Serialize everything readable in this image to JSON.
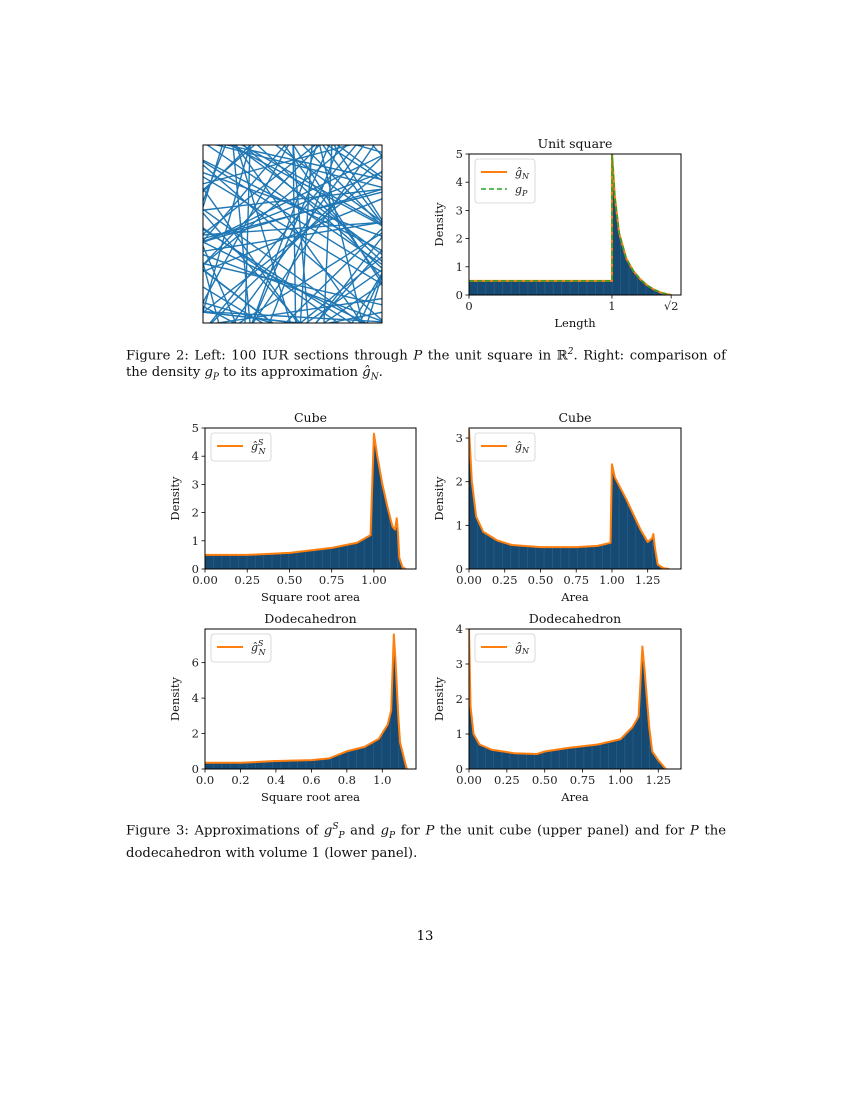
{
  "colors": {
    "fill": "#174a72",
    "bar_stripe": "#2d6a9a",
    "estimate": "#ff7f0e",
    "exact": "#2ca02c",
    "lines": "#1f77b4"
  },
  "figure2": {
    "left_panel": {
      "type": "line-sections",
      "count": 100
    },
    "caption": [
      {
        "t": "Figure 2: Left: 100 IUR sections through "
      },
      {
        "t": "P",
        "m": 1
      },
      {
        "t": " the unit square in ℝ"
      },
      {
        "t": "2",
        "sup": 1
      },
      {
        "t": ". Right: comparison of the density "
      },
      {
        "t": "g",
        "m": 1
      },
      {
        "t": "P",
        "sub": 1
      },
      {
        "t": " to its approximation "
      },
      {
        "t": "ĝ",
        "m": 1
      },
      {
        "t": "N",
        "sub": 1
      },
      {
        "t": "."
      }
    ]
  },
  "figure3": {
    "caption": [
      {
        "t": "Figure 3: Approximations of "
      },
      {
        "t": "g",
        "m": 1
      },
      {
        "t": "S",
        "sup": 1
      },
      {
        "t": "P",
        "sub": 1
      },
      {
        "t": " and "
      },
      {
        "t": "g",
        "m": 1
      },
      {
        "t": "P",
        "sub": 1
      },
      {
        "t": " for "
      },
      {
        "t": "P",
        "m": 1
      },
      {
        "t": " the unit cube (upper panel) and for "
      },
      {
        "t": "P",
        "m": 1
      },
      {
        "t": " the dodecahedron with volume 1 (lower panel)."
      }
    ]
  },
  "page_number": "13",
  "chart_data": [
    {
      "id": "unit-square",
      "type": "area",
      "title": "Unit square",
      "xlabel": "Length",
      "ylabel": "Density",
      "xlim": [
        0,
        1.483
      ],
      "ylim": [
        0,
        5
      ],
      "xticks": [
        {
          "v": 0,
          "l": "0"
        },
        {
          "v": 1,
          "l": "1"
        },
        {
          "v": 1.4142,
          "l": "√2"
        }
      ],
      "yticks": [
        {
          "v": 0,
          "l": "0"
        },
        {
          "v": 1,
          "l": "1"
        },
        {
          "v": 2,
          "l": "2"
        },
        {
          "v": 3,
          "l": "3"
        },
        {
          "v": 4,
          "l": "4"
        },
        {
          "v": 5,
          "l": "5"
        }
      ],
      "legend": "top-left",
      "series": [
        {
          "name": "ĝ_N",
          "style": "solid",
          "color": "#ff7f0e",
          "points": [
            [
              0,
              0.5
            ],
            [
              1,
              0.5
            ],
            [
              1,
              5.3
            ],
            [
              1.02,
              3.5
            ],
            [
              1.05,
              2.2
            ],
            [
              1.1,
              1.3
            ],
            [
              1.15,
              0.85
            ],
            [
              1.2,
              0.55
            ],
            [
              1.25,
              0.33
            ],
            [
              1.3,
              0.18
            ],
            [
              1.35,
              0.07
            ],
            [
              1.4142,
              0
            ]
          ]
        },
        {
          "name": "g_P",
          "style": "dashed",
          "color": "#2ca02c",
          "points": [
            [
              0,
              0.5
            ],
            [
              1,
              0.5
            ],
            [
              1,
              5.3
            ],
            [
              1.02,
              3.5
            ],
            [
              1.05,
              2.2
            ],
            [
              1.1,
              1.3
            ],
            [
              1.15,
              0.85
            ],
            [
              1.2,
              0.55
            ],
            [
              1.25,
              0.33
            ],
            [
              1.3,
              0.18
            ],
            [
              1.35,
              0.07
            ],
            [
              1.4142,
              0
            ]
          ]
        }
      ]
    },
    {
      "id": "cube-sqrt-area",
      "type": "area",
      "title": "Cube",
      "xlabel": "Square root area",
      "ylabel": "Density",
      "xlim": [
        0,
        1.249
      ],
      "ylim": [
        0,
        5
      ],
      "xticks": [
        {
          "v": 0,
          "l": "0.00"
        },
        {
          "v": 0.25,
          "l": "0.25"
        },
        {
          "v": 0.5,
          "l": "0.50"
        },
        {
          "v": 0.75,
          "l": "0.75"
        },
        {
          "v": 1,
          "l": "1.00"
        }
      ],
      "yticks": [
        {
          "v": 0,
          "l": "0"
        },
        {
          "v": 1,
          "l": "1"
        },
        {
          "v": 2,
          "l": "2"
        },
        {
          "v": 3,
          "l": "3"
        },
        {
          "v": 4,
          "l": "4"
        },
        {
          "v": 5,
          "l": "5"
        }
      ],
      "legend": "top-left",
      "series": [
        {
          "name": "ĝ^S_N",
          "style": "solid",
          "color": "#ff7f0e",
          "points": [
            [
              0,
              0.5
            ],
            [
              0.25,
              0.5
            ],
            [
              0.5,
              0.57
            ],
            [
              0.75,
              0.75
            ],
            [
              0.9,
              0.93
            ],
            [
              0.98,
              1.2
            ],
            [
              1.0,
              4.8
            ],
            [
              1.02,
              4.0
            ],
            [
              1.05,
              3.0
            ],
            [
              1.08,
              2.2
            ],
            [
              1.11,
              1.5
            ],
            [
              1.125,
              1.4
            ],
            [
              1.135,
              1.8
            ],
            [
              1.142,
              1.3
            ],
            [
              1.15,
              0.4
            ],
            [
              1.17,
              0.05
            ],
            [
              1.19,
              0
            ]
          ]
        }
      ]
    },
    {
      "id": "cube-area",
      "type": "area",
      "title": "Cube",
      "xlabel": "Area",
      "ylabel": "Density",
      "xlim": [
        0,
        1.483
      ],
      "ylim": [
        0,
        3.23
      ],
      "xticks": [
        {
          "v": 0,
          "l": "0.00"
        },
        {
          "v": 0.25,
          "l": "0.25"
        },
        {
          "v": 0.5,
          "l": "0.50"
        },
        {
          "v": 0.75,
          "l": "0.75"
        },
        {
          "v": 1,
          "l": "1.00"
        },
        {
          "v": 1.25,
          "l": "1.25"
        }
      ],
      "yticks": [
        {
          "v": 0,
          "l": "0"
        },
        {
          "v": 1,
          "l": "1"
        },
        {
          "v": 2,
          "l": "2"
        },
        {
          "v": 3,
          "l": "3"
        }
      ],
      "legend": "top-left",
      "series": [
        {
          "name": "ĝ_N",
          "style": "solid",
          "color": "#ff7f0e",
          "points": [
            [
              0,
              3.2
            ],
            [
              0.02,
              2.0
            ],
            [
              0.05,
              1.2
            ],
            [
              0.1,
              0.85
            ],
            [
              0.2,
              0.65
            ],
            [
              0.3,
              0.55
            ],
            [
              0.5,
              0.5
            ],
            [
              0.75,
              0.5
            ],
            [
              0.9,
              0.53
            ],
            [
              0.99,
              0.6
            ],
            [
              1.0,
              2.4
            ],
            [
              1.02,
              2.1
            ],
            [
              1.1,
              1.6
            ],
            [
              1.2,
              0.9
            ],
            [
              1.25,
              0.62
            ],
            [
              1.28,
              0.7
            ],
            [
              1.29,
              0.8
            ],
            [
              1.3,
              0.5
            ],
            [
              1.32,
              0.1
            ],
            [
              1.36,
              0.02
            ],
            [
              1.4,
              0
            ]
          ]
        }
      ]
    },
    {
      "id": "dodecahedron-sqrt-area",
      "type": "area",
      "title": "Dodecahedron",
      "xlabel": "Square root area",
      "ylabel": "Density",
      "xlim": [
        0,
        1.19
      ],
      "ylim": [
        0,
        7.9
      ],
      "xticks": [
        {
          "v": 0,
          "l": "0.0"
        },
        {
          "v": 0.2,
          "l": "0.2"
        },
        {
          "v": 0.4,
          "l": "0.4"
        },
        {
          "v": 0.6,
          "l": "0.6"
        },
        {
          "v": 0.8,
          "l": "0.8"
        },
        {
          "v": 1,
          "l": "1.0"
        }
      ],
      "yticks": [
        {
          "v": 0,
          "l": "0"
        },
        {
          "v": 2,
          "l": "2"
        },
        {
          "v": 4,
          "l": "4"
        },
        {
          "v": 6,
          "l": "6"
        }
      ],
      "legend": "top-left",
      "series": [
        {
          "name": "ĝ^S_N",
          "style": "solid",
          "color": "#ff7f0e",
          "points": [
            [
              0,
              0.35
            ],
            [
              0.2,
              0.35
            ],
            [
              0.4,
              0.45
            ],
            [
              0.6,
              0.5
            ],
            [
              0.7,
              0.6
            ],
            [
              0.8,
              1.0
            ],
            [
              0.9,
              1.25
            ],
            [
              0.98,
              1.7
            ],
            [
              1.03,
              2.5
            ],
            [
              1.05,
              3.3
            ],
            [
              1.065,
              7.6
            ],
            [
              1.075,
              6.0
            ],
            [
              1.09,
              3.0
            ],
            [
              1.1,
              1.5
            ],
            [
              1.12,
              0.7
            ],
            [
              1.135,
              0.1
            ],
            [
              1.14,
              0
            ]
          ]
        }
      ]
    },
    {
      "id": "dodecahedron-area",
      "type": "area",
      "title": "Dodecahedron",
      "xlabel": "Area",
      "ylabel": "Density",
      "xlim": [
        0,
        1.4
      ],
      "ylim": [
        0,
        4
      ],
      "xticks": [
        {
          "v": 0,
          "l": "0.00"
        },
        {
          "v": 0.25,
          "l": "0.25"
        },
        {
          "v": 0.5,
          "l": "0.50"
        },
        {
          "v": 0.75,
          "l": "0.75"
        },
        {
          "v": 1,
          "l": "1.00"
        },
        {
          "v": 1.25,
          "l": "1.25"
        }
      ],
      "yticks": [
        {
          "v": 0,
          "l": "0"
        },
        {
          "v": 1,
          "l": "1"
        },
        {
          "v": 2,
          "l": "2"
        },
        {
          "v": 3,
          "l": "3"
        },
        {
          "v": 4,
          "l": "4"
        }
      ],
      "legend": "top-left",
      "series": [
        {
          "name": "ĝ_N",
          "style": "solid",
          "color": "#ff7f0e",
          "points": [
            [
              0,
              4
            ],
            [
              0.01,
              1.8
            ],
            [
              0.03,
              1.0
            ],
            [
              0.07,
              0.7
            ],
            [
              0.15,
              0.55
            ],
            [
              0.3,
              0.45
            ],
            [
              0.45,
              0.43
            ],
            [
              0.5,
              0.5
            ],
            [
              0.65,
              0.6
            ],
            [
              0.85,
              0.7
            ],
            [
              1.0,
              0.85
            ],
            [
              1.08,
              1.2
            ],
            [
              1.12,
              1.5
            ],
            [
              1.145,
              3.5
            ],
            [
              1.16,
              2.8
            ],
            [
              1.19,
              1.2
            ],
            [
              1.21,
              0.5
            ],
            [
              1.25,
              0.25
            ],
            [
              1.28,
              0.1
            ],
            [
              1.3,
              0
            ]
          ]
        }
      ]
    }
  ]
}
